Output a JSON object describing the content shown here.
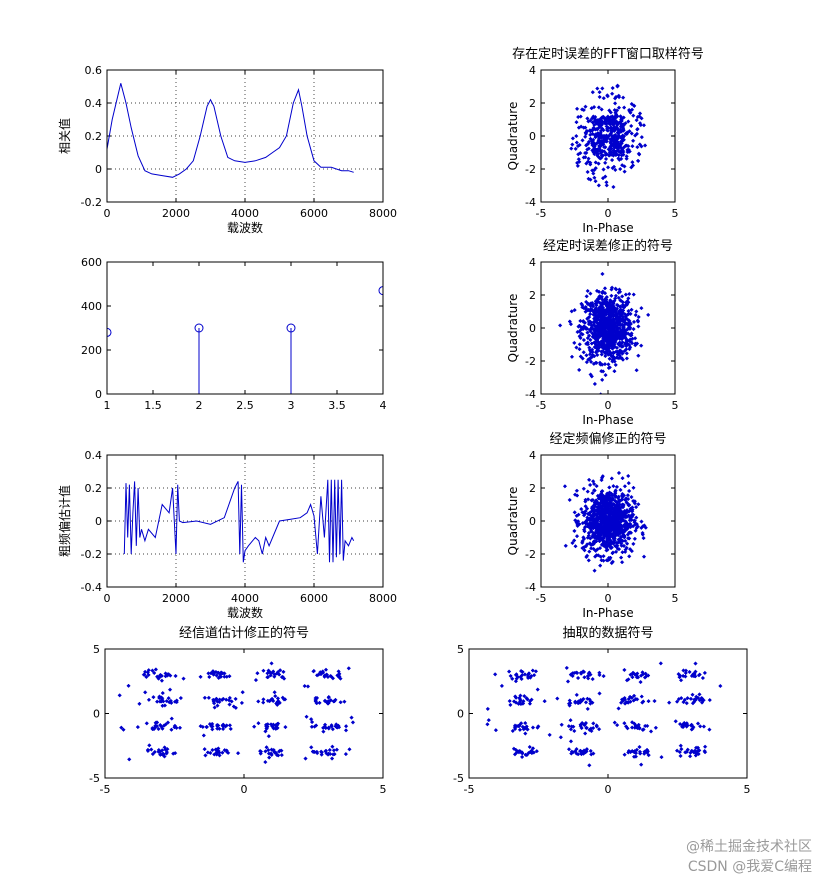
{
  "watermark": {
    "line1": "@稀土掘金技术社区",
    "line2": "CSDN @我爱C编程"
  },
  "colors": {
    "series": "#0000cc",
    "axes": "#000000",
    "grid": "#000000"
  },
  "chart_data": [
    {
      "type": "line",
      "id": "p1",
      "title": "",
      "xlabel": "载波数",
      "ylabel": "相关值",
      "xlim": [
        0,
        8000
      ],
      "ylim": [
        -0.2,
        0.6
      ],
      "xticks": [
        0,
        2000,
        4000,
        6000,
        8000
      ],
      "yticks": [
        -0.2,
        0,
        0.2,
        0.4,
        0.6
      ],
      "grid": true,
      "x": [
        0,
        150,
        400,
        550,
        700,
        900,
        1100,
        1300,
        1600,
        1900,
        2100,
        2300,
        2500,
        2700,
        2900,
        3000,
        3100,
        3300,
        3500,
        3700,
        4000,
        4300,
        4600,
        4800,
        5000,
        5200,
        5400,
        5550,
        5650,
        5800,
        6000,
        6200,
        6500,
        6800,
        7000,
        7150
      ],
      "y": [
        0.12,
        0.3,
        0.52,
        0.4,
        0.25,
        0.08,
        -0.01,
        -0.03,
        -0.04,
        -0.05,
        -0.03,
        0.0,
        0.05,
        0.2,
        0.38,
        0.42,
        0.38,
        0.2,
        0.07,
        0.05,
        0.04,
        0.05,
        0.07,
        0.1,
        0.13,
        0.2,
        0.4,
        0.48,
        0.38,
        0.2,
        0.05,
        0.01,
        0.01,
        -0.01,
        -0.01,
        -0.02
      ]
    },
    {
      "type": "stem",
      "id": "p2",
      "title": "",
      "xlabel": "",
      "ylabel": "",
      "xlim": [
        1,
        4
      ],
      "ylim": [
        0,
        600
      ],
      "xticks": [
        1,
        1.5,
        2,
        2.5,
        3,
        3.5,
        4
      ],
      "yticks": [
        0,
        200,
        400,
        600
      ],
      "grid": false,
      "x": [
        1,
        2,
        3,
        4
      ],
      "y": [
        280,
        300,
        300,
        470
      ]
    },
    {
      "type": "line",
      "id": "p3",
      "title": "",
      "xlabel": "载波数",
      "ylabel": "粗频偏估计值",
      "xlim": [
        0,
        8000
      ],
      "ylim": [
        -0.4,
        0.4
      ],
      "xticks": [
        0,
        2000,
        4000,
        6000,
        8000
      ],
      "yticks": [
        -0.4,
        -0.2,
        0,
        0.2,
        0.4
      ],
      "grid": true,
      "x": [
        500,
        550,
        600,
        650,
        700,
        750,
        800,
        850,
        900,
        950,
        1000,
        1100,
        1200,
        1400,
        1600,
        1800,
        1900,
        2000,
        2050,
        2100,
        2200,
        2600,
        3000,
        3400,
        3700,
        3800,
        3850,
        3900,
        3950,
        4000,
        4100,
        4300,
        4400,
        4500,
        4600,
        4700,
        5000,
        5300,
        5600,
        5800,
        5900,
        6000,
        6100,
        6200,
        6300,
        6400,
        6450,
        6500,
        6550,
        6600,
        6650,
        6700,
        6750,
        6800,
        6850,
        6900,
        7000,
        7100,
        7150
      ],
      "y": [
        -0.2,
        0.23,
        -0.1,
        0.22,
        -0.2,
        0.05,
        0.24,
        -0.15,
        0.2,
        -0.1,
        -0.05,
        -0.12,
        -0.05,
        -0.1,
        0.1,
        0.05,
        0.2,
        -0.2,
        0.22,
        0.0,
        -0.01,
        0.0,
        -0.02,
        0.02,
        0.2,
        0.24,
        -0.2,
        0.22,
        -0.25,
        -0.18,
        -0.15,
        -0.1,
        -0.12,
        -0.2,
        -0.1,
        -0.15,
        0.0,
        0.01,
        0.02,
        0.05,
        0.1,
        0.03,
        -0.2,
        0.15,
        -0.1,
        0.25,
        -0.25,
        0.25,
        -0.25,
        0.25,
        -0.22,
        0.25,
        -0.2,
        0.25,
        -0.24,
        -0.12,
        -0.15,
        -0.1,
        -0.12
      ]
    },
    {
      "type": "scatter",
      "id": "s1",
      "title": "存在定时误差的FFT窗口取样符号",
      "xlabel": "In-Phase",
      "ylabel": "Quadrature",
      "xlim": [
        -5,
        5
      ],
      "ylim": [
        -4,
        4
      ],
      "xticks": [
        -5,
        0,
        5
      ],
      "yticks": [
        -4,
        -2,
        0,
        2,
        4
      ],
      "distribution": "ring-and-core, center (0,0), core ±1.2, outer radius ≈3.2"
    },
    {
      "type": "scatter",
      "id": "s2",
      "title": "经定时误差修正的符号",
      "xlabel": "In-Phase",
      "ylabel": "Quadrature",
      "xlim": [
        -5,
        5
      ],
      "ylim": [
        -4,
        4
      ],
      "xticks": [
        -5,
        0,
        5
      ],
      "yticks": [
        -4,
        -2,
        0,
        2,
        4
      ],
      "distribution": "gaussian blob, center (0,0), sd ≈1.0"
    },
    {
      "type": "scatter",
      "id": "s3",
      "title": "经定频偏修正的符号",
      "xlabel": "In-Phase",
      "ylabel": "Quadrature",
      "xlim": [
        -5,
        5
      ],
      "ylim": [
        -4,
        4
      ],
      "xticks": [
        -5,
        0,
        5
      ],
      "yticks": [
        -4,
        -2,
        0,
        2,
        4
      ],
      "distribution": "gaussian blob, center (0,0), sd ≈1.0"
    },
    {
      "type": "scatter",
      "id": "s4",
      "title": "经信道估计修正的符号",
      "xlabel": "",
      "ylabel": "",
      "xlim": [
        -5,
        5
      ],
      "ylim": [
        -5,
        5
      ],
      "xticks": [
        -5,
        0,
        5
      ],
      "yticks": [
        -5,
        0,
        5
      ],
      "constellation_levels": [
        -3,
        -1,
        1,
        3
      ],
      "distribution": "16-QAM clusters at ±1, ±3 with sd ≈0.3 plus scattered outliers"
    },
    {
      "type": "scatter",
      "id": "s5",
      "title": "抽取的数据符号",
      "xlabel": "",
      "ylabel": "",
      "xlim": [
        -5,
        5
      ],
      "ylim": [
        -5,
        5
      ],
      "xticks": [
        -5,
        0,
        5
      ],
      "yticks": [
        -5,
        0,
        5
      ],
      "constellation_levels": [
        -3,
        -1,
        1,
        3
      ],
      "distribution": "16-QAM clusters at ±1, ±3 with sd ≈0.3 plus scattered outliers"
    }
  ]
}
